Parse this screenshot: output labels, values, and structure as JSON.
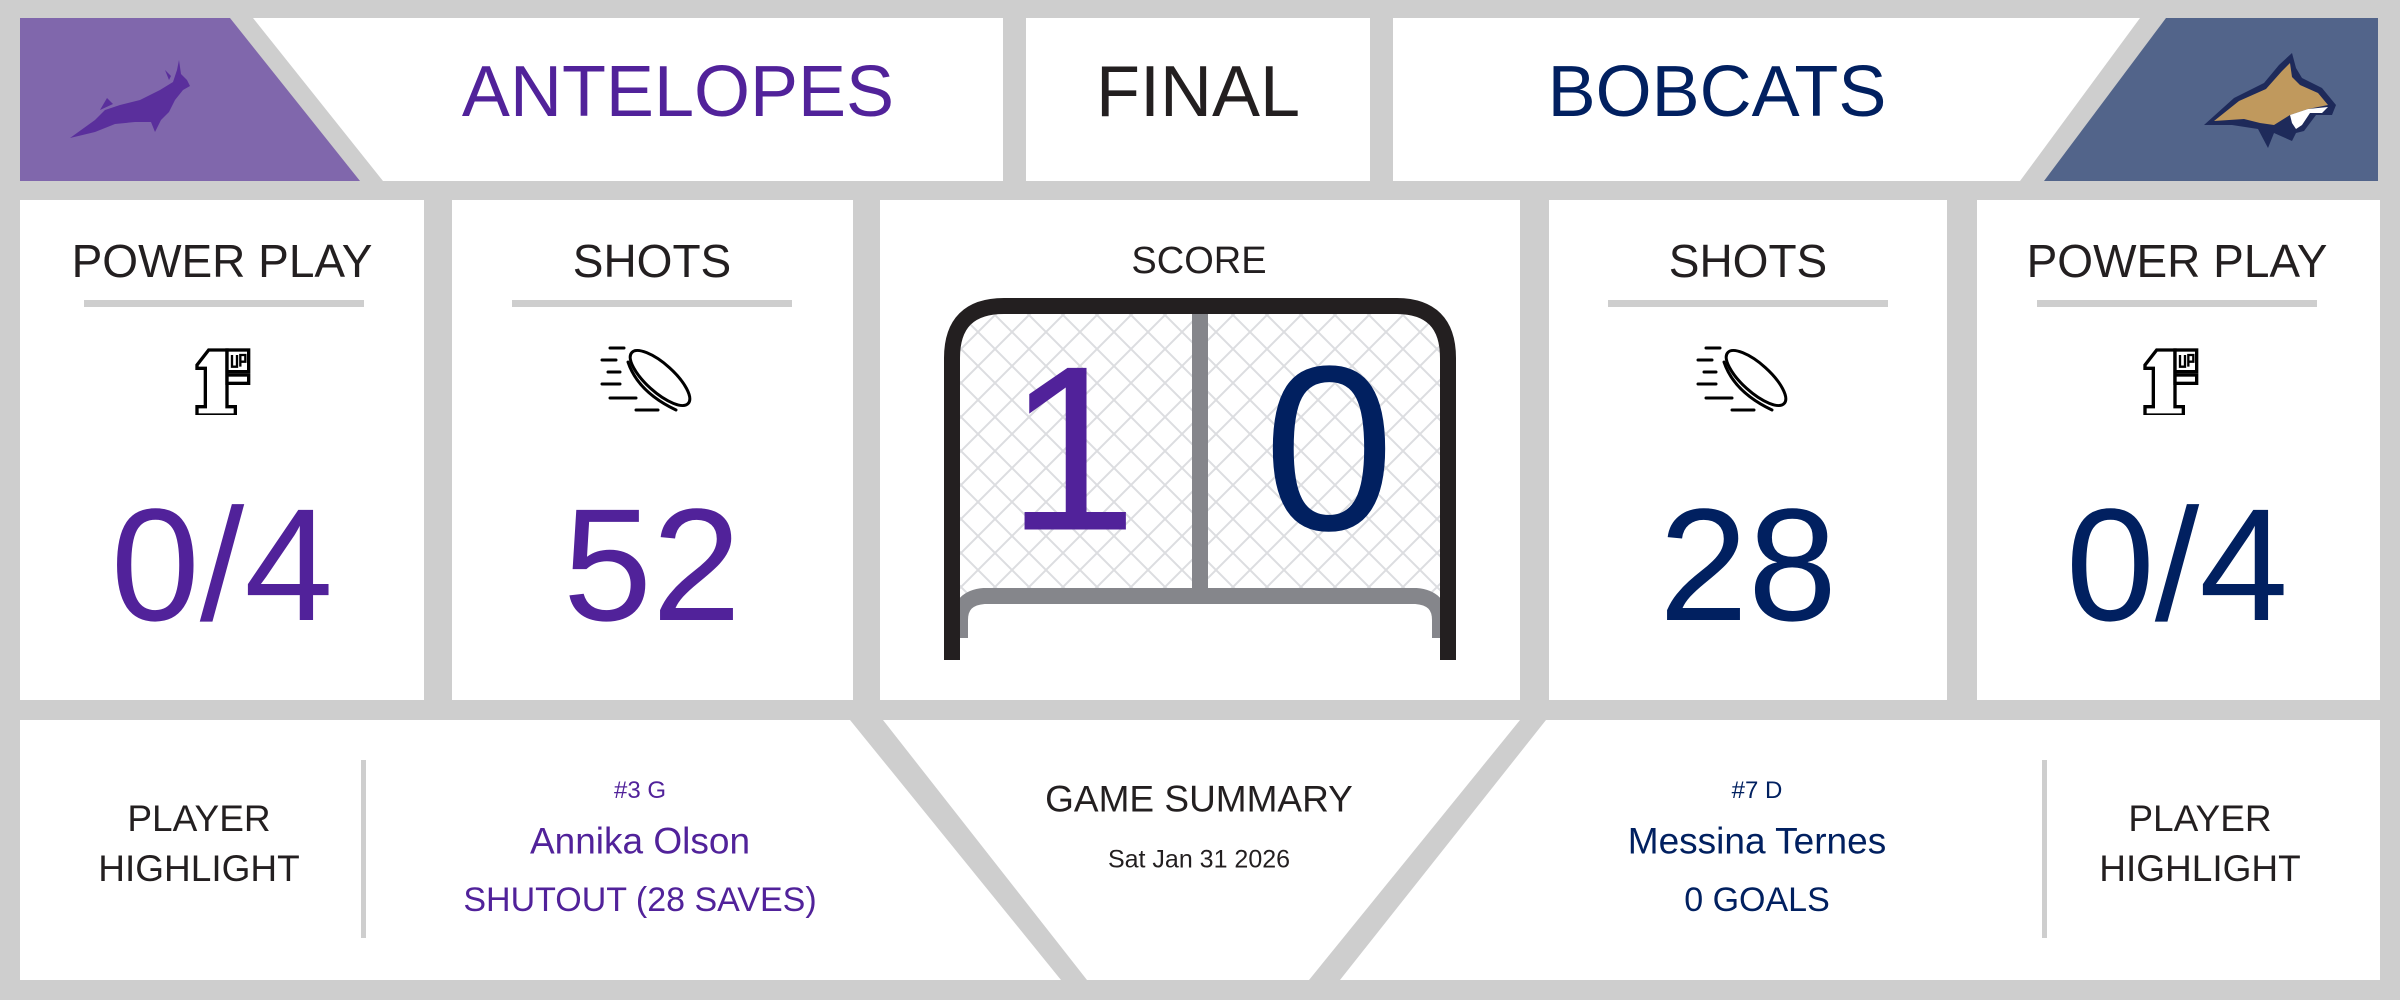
{
  "colors": {
    "home": "#51229a",
    "away": "#012060",
    "home_logo_bg": "#8067ac",
    "away_logo_bg": "#52648a",
    "background": "#cecece"
  },
  "header": {
    "home_team": "ANTELOPES",
    "status": "FINAL",
    "away_team": "BOBCATS",
    "home_logo": "antelope-logo",
    "away_logo": "bobcat-logo"
  },
  "home_stats": {
    "power_play": {
      "label": "POWER PLAY",
      "value": "0/4",
      "icon": "1up-icon"
    },
    "shots": {
      "label": "SHOTS",
      "value": "52",
      "icon": "puck-icon"
    }
  },
  "away_stats": {
    "power_play": {
      "label": "POWER PLAY",
      "value": "0/4",
      "icon": "1up-icon"
    },
    "shots": {
      "label": "SHOTS",
      "value": "28",
      "icon": "puck-icon"
    }
  },
  "score": {
    "label": "SCORE",
    "home": "1",
    "away": "0"
  },
  "summary": {
    "label": "GAME SUMMARY",
    "date": "Sat Jan 31 2026"
  },
  "home_highlight": {
    "label_line1": "PLAYER",
    "label_line2": "HIGHLIGHT",
    "number_pos": "#3 G",
    "name": "Annika Olson",
    "stat": "SHUTOUT (28 SAVES)"
  },
  "away_highlight": {
    "label_line1": "PLAYER",
    "label_line2": "HIGHLIGHT",
    "number_pos": "#7 D",
    "name": "Messina Ternes",
    "stat": "0 GOALS"
  }
}
